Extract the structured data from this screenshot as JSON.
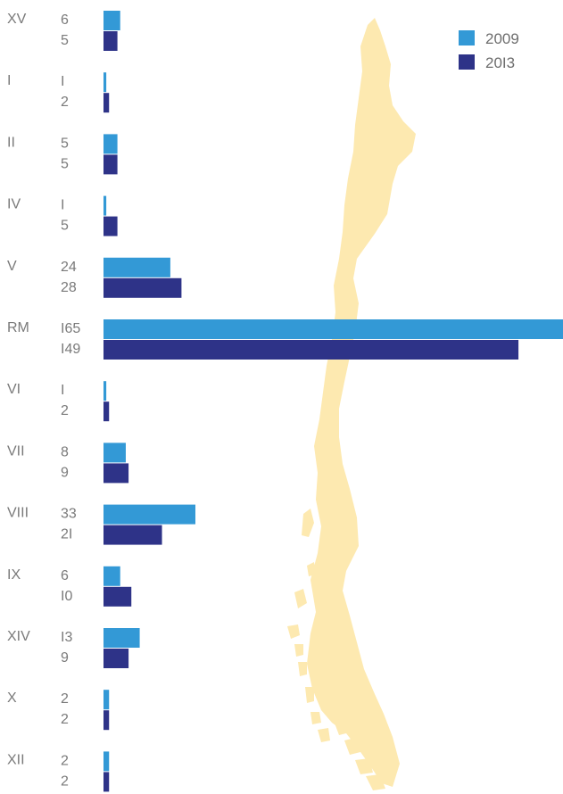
{
  "chart_data": {
    "type": "bar",
    "orientation": "horizontal",
    "categories": [
      "XV",
      "I",
      "II",
      "IV",
      "V",
      "RM",
      "VI",
      "VII",
      "VIII",
      "IX",
      "XIV",
      "X",
      "XII"
    ],
    "series": [
      {
        "name": "2009",
        "values": [
          6,
          1,
          5,
          1,
          24,
          165,
          1,
          8,
          33,
          6,
          13,
          2,
          2
        ],
        "display": [
          "6",
          "I",
          "5",
          "I",
          "24",
          "I65",
          "I",
          "8",
          "33",
          "6",
          "I3",
          "2",
          "2"
        ]
      },
      {
        "name": "2013",
        "values": [
          5,
          2,
          5,
          5,
          28,
          149,
          2,
          9,
          21,
          10,
          9,
          2,
          2
        ],
        "display": [
          "5",
          "2",
          "5",
          "5",
          "28",
          "I49",
          "2",
          "9",
          "2I",
          "I0",
          "9",
          "2",
          "2"
        ]
      }
    ],
    "legend": {
      "position": "top-right",
      "labels": [
        "2009",
        "20I3"
      ]
    },
    "xlim": [
      0,
      165
    ],
    "grid": false,
    "colors": {
      "2009": "#3399d6",
      "2013": "#2e3388",
      "map": "#fde9b0"
    },
    "background_shape": "map-of-chile"
  }
}
